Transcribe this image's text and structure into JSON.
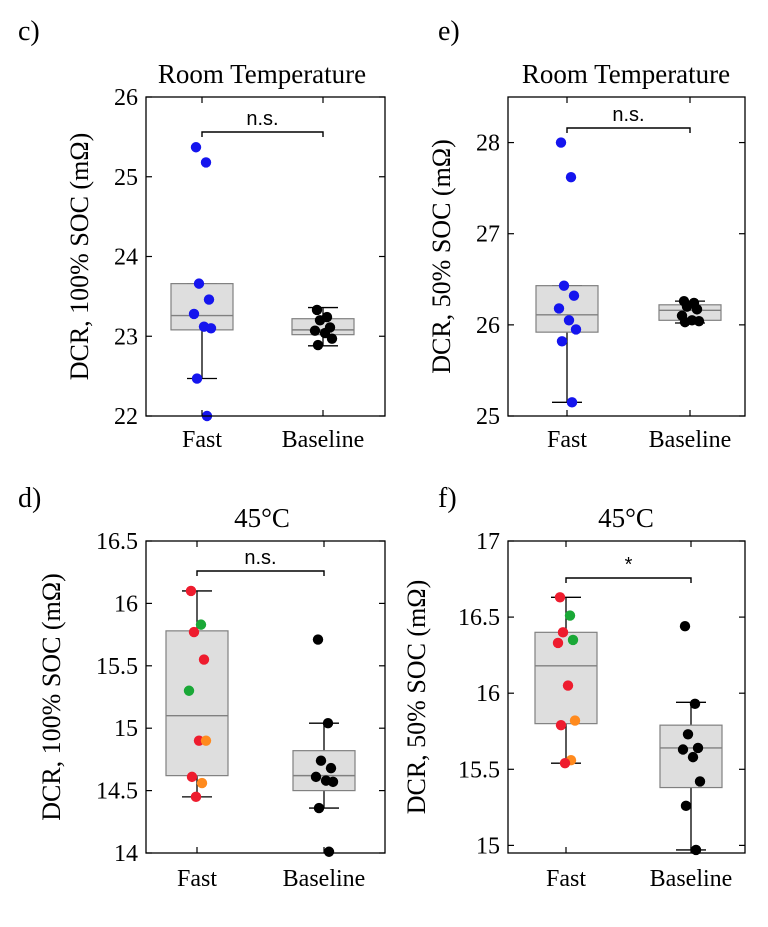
{
  "chart_data": [
    {
      "panel": "c)",
      "type": "boxplot",
      "title": "Room Temperature",
      "ylabel": "DCR, 100% SOC (mΩ)",
      "ylim": [
        22,
        26
      ],
      "yticks": [
        22,
        23,
        24,
        25,
        26
      ],
      "ytick_labels": [
        "22",
        "23",
        "24",
        "25",
        "26"
      ],
      "categories": [
        "Fast",
        "Baseline"
      ],
      "significance": "n.s.",
      "groups": [
        {
          "box": {
            "whisker_low": 22.47,
            "q1": 23.08,
            "median": 23.26,
            "q3": 23.66,
            "whisker_high": 23.66
          },
          "points": [
            {
              "y": 25.37,
              "color": "#1515ee"
            },
            {
              "y": 25.18,
              "color": "#1515ee"
            },
            {
              "y": 23.66,
              "color": "#1515ee"
            },
            {
              "y": 23.46,
              "color": "#1515ee"
            },
            {
              "y": 23.28,
              "color": "#1515ee"
            },
            {
              "y": 23.12,
              "color": "#1515ee"
            },
            {
              "y": 23.1,
              "color": "#1515ee"
            },
            {
              "y": 22.47,
              "color": "#1515ee"
            },
            {
              "y": 22.0,
              "color": "#1515ee"
            }
          ]
        },
        {
          "box": {
            "whisker_low": 22.88,
            "q1": 23.02,
            "median": 23.08,
            "q3": 23.22,
            "whisker_high": 23.36
          },
          "points": [
            {
              "y": 23.33,
              "color": "#000000"
            },
            {
              "y": 23.24,
              "color": "#000000"
            },
            {
              "y": 23.2,
              "color": "#000000"
            },
            {
              "y": 23.11,
              "color": "#000000"
            },
            {
              "y": 23.07,
              "color": "#000000"
            },
            {
              "y": 23.04,
              "color": "#000000"
            },
            {
              "y": 22.97,
              "color": "#000000"
            },
            {
              "y": 22.89,
              "color": "#000000"
            }
          ]
        }
      ]
    },
    {
      "panel": "e)",
      "type": "boxplot",
      "title": "Room Temperature",
      "ylabel": "DCR, 50% SOC (mΩ)",
      "ylim": [
        25,
        28.5
      ],
      "yticks": [
        25,
        26,
        27,
        28
      ],
      "ytick_labels": [
        "25",
        "26",
        "27",
        "28"
      ],
      "categories": [
        "Fast",
        "Baseline"
      ],
      "significance": "n.s.",
      "groups": [
        {
          "box": {
            "whisker_low": 25.15,
            "q1": 25.92,
            "median": 26.11,
            "q3": 26.43,
            "whisker_high": 26.43
          },
          "points": [
            {
              "y": 28.0,
              "color": "#1515ee"
            },
            {
              "y": 27.62,
              "color": "#1515ee"
            },
            {
              "y": 26.43,
              "color": "#1515ee"
            },
            {
              "y": 26.32,
              "color": "#1515ee"
            },
            {
              "y": 26.18,
              "color": "#1515ee"
            },
            {
              "y": 26.05,
              "color": "#1515ee"
            },
            {
              "y": 25.95,
              "color": "#1515ee"
            },
            {
              "y": 25.82,
              "color": "#1515ee"
            },
            {
              "y": 25.15,
              "color": "#1515ee"
            }
          ]
        },
        {
          "box": {
            "whisker_low": 26.02,
            "q1": 26.05,
            "median": 26.16,
            "q3": 26.22,
            "whisker_high": 26.26
          },
          "points": [
            {
              "y": 26.26,
              "color": "#000000"
            },
            {
              "y": 26.24,
              "color": "#000000"
            },
            {
              "y": 26.2,
              "color": "#000000"
            },
            {
              "y": 26.17,
              "color": "#000000"
            },
            {
              "y": 26.1,
              "color": "#000000"
            },
            {
              "y": 26.05,
              "color": "#000000"
            },
            {
              "y": 26.04,
              "color": "#000000"
            },
            {
              "y": 26.03,
              "color": "#000000"
            }
          ]
        }
      ]
    },
    {
      "panel": "d)",
      "type": "boxplot",
      "title": "45°C",
      "ylabel": "DCR, 100% SOC (mΩ)",
      "ylim": [
        14,
        16.5
      ],
      "yticks": [
        14,
        14.5,
        15,
        15.5,
        16,
        16.5
      ],
      "ytick_labels": [
        "14",
        "14.5",
        "15",
        "15.5",
        "16",
        "16.5"
      ],
      "categories": [
        "Fast",
        "Baseline"
      ],
      "significance": "n.s.",
      "groups": [
        {
          "box": {
            "whisker_low": 14.45,
            "q1": 14.62,
            "median": 15.1,
            "q3": 15.78,
            "whisker_high": 16.1
          },
          "points": [
            {
              "y": 16.1,
              "color": "#ee1c2e"
            },
            {
              "y": 15.83,
              "color": "#1aa837"
            },
            {
              "y": 15.77,
              "color": "#ee1c2e"
            },
            {
              "y": 15.55,
              "color": "#ee1c2e"
            },
            {
              "y": 15.3,
              "color": "#1aa837"
            },
            {
              "y": 14.9,
              "color": "#ee1c2e"
            },
            {
              "y": 14.9,
              "color": "#ff8a1e"
            },
            {
              "y": 14.61,
              "color": "#ee1c2e"
            },
            {
              "y": 14.56,
              "color": "#ff8a1e"
            },
            {
              "y": 14.45,
              "color": "#ee1c2e"
            }
          ]
        },
        {
          "box": {
            "whisker_low": 14.36,
            "q1": 14.5,
            "median": 14.62,
            "q3": 14.82,
            "whisker_high": 15.04
          },
          "points": [
            {
              "y": 15.71,
              "color": "#000000"
            },
            {
              "y": 15.04,
              "color": "#000000"
            },
            {
              "y": 14.74,
              "color": "#000000"
            },
            {
              "y": 14.68,
              "color": "#000000"
            },
            {
              "y": 14.61,
              "color": "#000000"
            },
            {
              "y": 14.58,
              "color": "#000000"
            },
            {
              "y": 14.57,
              "color": "#000000"
            },
            {
              "y": 14.36,
              "color": "#000000"
            },
            {
              "y": 14.01,
              "color": "#000000"
            }
          ]
        }
      ]
    },
    {
      "panel": "f)",
      "type": "boxplot",
      "title": "45°C",
      "ylabel": "DCR, 50% SOC (mΩ)",
      "ylim": [
        14.95,
        17
      ],
      "yticks": [
        15,
        15.5,
        16,
        16.5,
        17
      ],
      "ytick_labels": [
        "15",
        "15.5",
        "16",
        "16.5",
        "17"
      ],
      "categories": [
        "Fast",
        "Baseline"
      ],
      "significance": "*",
      "groups": [
        {
          "box": {
            "whisker_low": 15.54,
            "q1": 15.8,
            "median": 16.18,
            "q3": 16.4,
            "whisker_high": 16.63
          },
          "points": [
            {
              "y": 16.63,
              "color": "#ee1c2e"
            },
            {
              "y": 16.51,
              "color": "#1aa837"
            },
            {
              "y": 16.4,
              "color": "#ee1c2e"
            },
            {
              "y": 16.35,
              "color": "#1aa837"
            },
            {
              "y": 16.33,
              "color": "#ee1c2e"
            },
            {
              "y": 16.05,
              "color": "#ee1c2e"
            },
            {
              "y": 15.82,
              "color": "#ff8a1e"
            },
            {
              "y": 15.79,
              "color": "#ee1c2e"
            },
            {
              "y": 15.56,
              "color": "#ff8a1e"
            },
            {
              "y": 15.54,
              "color": "#ee1c2e"
            }
          ]
        },
        {
          "box": {
            "whisker_low": 14.97,
            "q1": 15.38,
            "median": 15.64,
            "q3": 15.79,
            "whisker_high": 15.94
          },
          "points": [
            {
              "y": 16.44,
              "color": "#000000"
            },
            {
              "y": 15.93,
              "color": "#000000"
            },
            {
              "y": 15.73,
              "color": "#000000"
            },
            {
              "y": 15.64,
              "color": "#000000"
            },
            {
              "y": 15.63,
              "color": "#000000"
            },
            {
              "y": 15.58,
              "color": "#000000"
            },
            {
              "y": 15.42,
              "color": "#000000"
            },
            {
              "y": 15.26,
              "color": "#000000"
            },
            {
              "y": 14.97,
              "color": "#000000"
            }
          ]
        }
      ]
    }
  ]
}
